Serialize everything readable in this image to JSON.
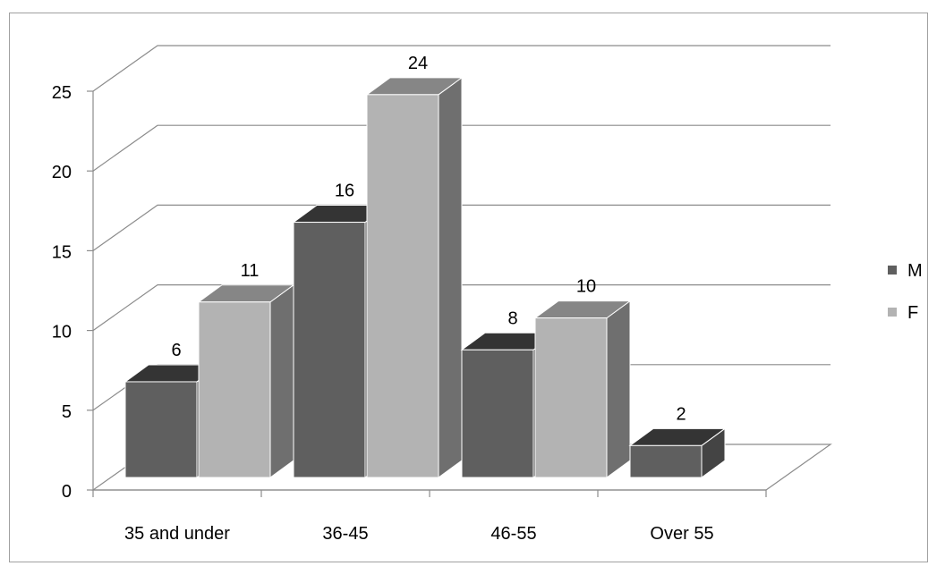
{
  "chart_data": {
    "type": "bar",
    "style": "3d-clustered-column",
    "title": "",
    "xlabel": "",
    "ylabel": "",
    "categories": [
      "35 and under",
      "36-45",
      "46-55",
      "Over 55"
    ],
    "series": [
      {
        "name": "M",
        "values": [
          6,
          16,
          8,
          2
        ],
        "color": "#5f5f5f"
      },
      {
        "name": "F",
        "values": [
          11,
          24,
          10,
          null
        ],
        "color": "#b3b3b3"
      }
    ],
    "data_labels": [
      [
        "6",
        "16",
        "8",
        "2"
      ],
      [
        "11",
        "24",
        "10",
        ""
      ]
    ],
    "ylim": [
      0,
      25
    ],
    "y_ticks": [
      0,
      5,
      10,
      15,
      20,
      25
    ],
    "grid": true,
    "legend": "right"
  }
}
